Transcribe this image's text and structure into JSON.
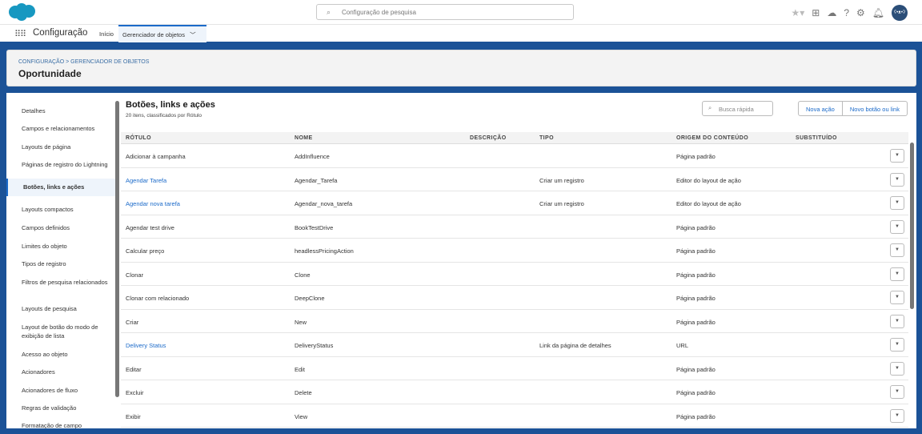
{
  "header": {
    "search_placeholder": "Configuração de pesquisa",
    "avatar": "ʕ•ᴥ•ʔ"
  },
  "nav": {
    "app_name": "Configuração",
    "home": "Início",
    "tab": "Gerenciador de objetos"
  },
  "page": {
    "breadcrumb": "CONFIGURAÇÃO > GERENCIADOR DE OBJETOS",
    "title": "Oportunidade"
  },
  "sidebar": {
    "items": [
      "Detalhes",
      "Campos e relacionamentos",
      "Layouts de página",
      "Páginas de registro do Lightning",
      "Botões, links e ações",
      "Layouts compactos",
      "Campos definidos",
      "Limites do objeto",
      "Tipos de registro",
      "Filtros de pesquisa relacionados",
      "Layouts de pesquisa",
      "Layout de botão do modo de exibição de lista",
      "Acesso ao objeto",
      "Acionadores",
      "Acionadores de fluxo",
      "Regras de validação",
      "Formatação de campo"
    ],
    "active": "Botões, links e ações"
  },
  "main": {
    "title": "Botões, links e ações",
    "subtitle": "20 itens, classificados por Rótulo",
    "quick_search_placeholder": "Busca rápida",
    "new_action": "Nova ação",
    "new_button": "Novo botão ou link",
    "columns": [
      "RÓTULO",
      "NOME",
      "DESCRIÇÃO",
      "TIPO",
      "ORIGEM DO CONTEÚDO",
      "SUBSTITUÍDO"
    ],
    "rows": [
      [
        "Adicionar à campanha",
        "AddInfluence",
        "",
        "",
        "Página padrão",
        "",
        false
      ],
      [
        "Agendar Tarefa",
        "Agendar_Tarefa",
        "",
        "Criar um registro",
        "Editor do layout de ação",
        "",
        true
      ],
      [
        "Agendar nova tarefa",
        "Agendar_nova_tarefa",
        "",
        "Criar um registro",
        "Editor do layout de ação",
        "",
        true
      ],
      [
        "Agendar test drive",
        "BookTestDrive",
        "",
        "",
        "Página padrão",
        "",
        false
      ],
      [
        "Calcular preço",
        "headlessPricingAction",
        "",
        "",
        "Página padrão",
        "",
        false
      ],
      [
        "Clonar",
        "Clone",
        "",
        "",
        "Página padrão",
        "",
        false
      ],
      [
        "Clonar com relacionado",
        "DeepClone",
        "",
        "",
        "Página padrão",
        "",
        false
      ],
      [
        "Criar",
        "New",
        "",
        "",
        "Página padrão",
        "",
        false
      ],
      [
        "Delivery Status",
        "DeliveryStatus",
        "",
        "Link da página de detalhes",
        "URL",
        "",
        true
      ],
      [
        "Editar",
        "Edit",
        "",
        "",
        "Página padrão",
        "",
        false
      ],
      [
        "Excluir",
        "Delete",
        "",
        "",
        "Página padrão",
        "",
        false
      ],
      [
        "Exibir",
        "View",
        "",
        "",
        "Página padrão",
        "",
        false
      ]
    ]
  },
  "colors": {
    "brand": "#1b5297",
    "link": "#1b6ac9",
    "salesforce_cloud": "#1798c1"
  }
}
